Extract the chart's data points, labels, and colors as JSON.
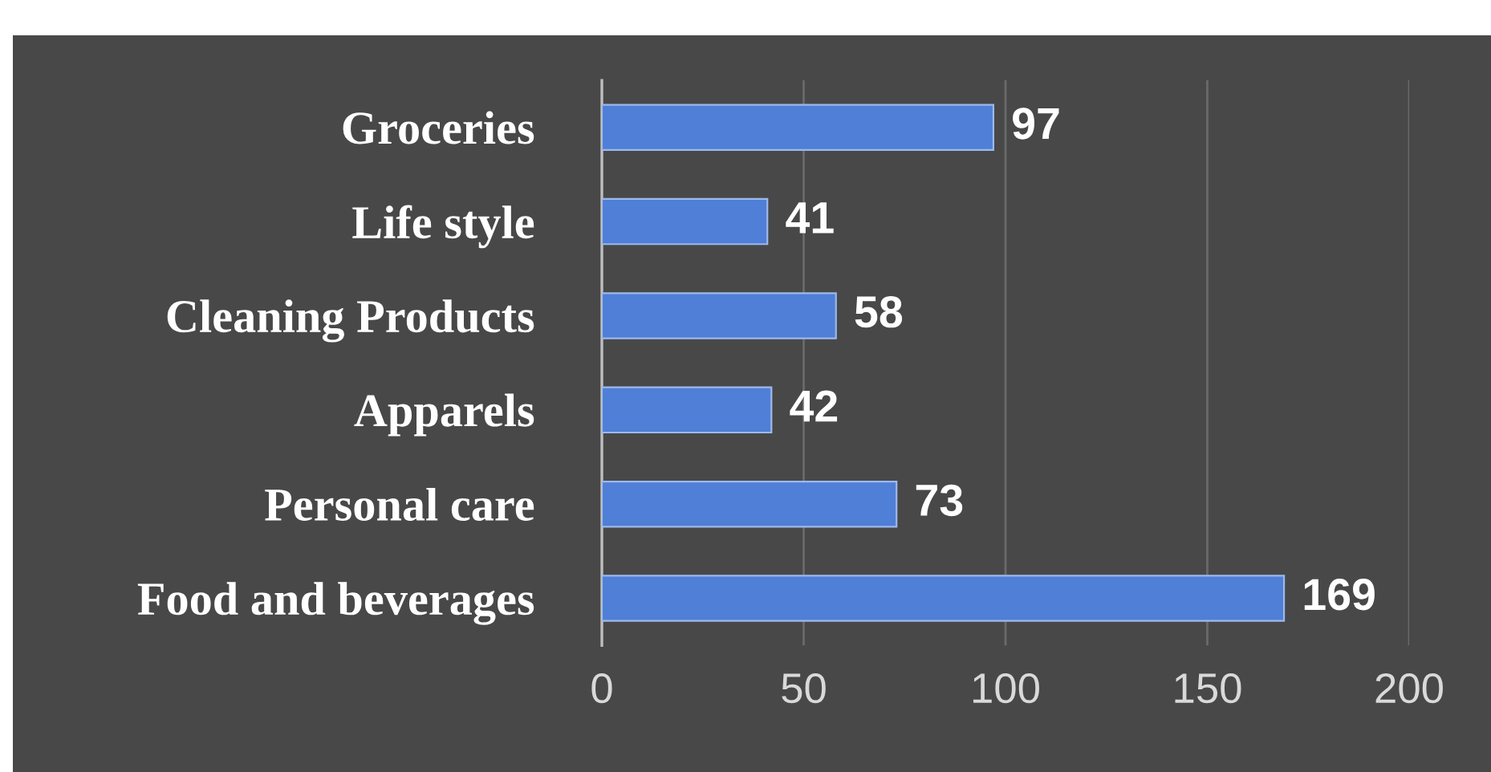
{
  "chart_data": {
    "type": "bar",
    "orientation": "horizontal",
    "categories": [
      "Groceries",
      "Life style",
      "Cleaning Products",
      "Apparels",
      "Personal care",
      "Food and beverages"
    ],
    "values": [
      97,
      41,
      58,
      42,
      73,
      169
    ],
    "color": "#4f7fd6",
    "xlim": [
      0,
      200
    ],
    "xticks": [
      0,
      50,
      100,
      150,
      200
    ],
    "grid": "x",
    "data_labels": true
  }
}
